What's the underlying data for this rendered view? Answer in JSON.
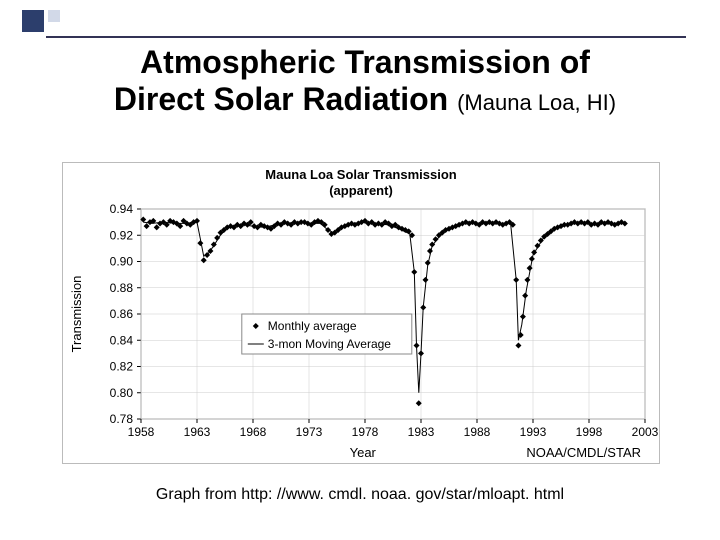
{
  "slide": {
    "title_line1": "Atmospheric Transmission of",
    "title_line2": "Direct Solar Radiation",
    "title_suffix": "(Mauna Loa, HI)",
    "caption_prefix": "Graph from  ",
    "caption_url": "http: //www. cmdl. noaa. gov/star/mloapt. html"
  },
  "chart": {
    "type": "line+scatter",
    "title_line1": "Mauna Loa Solar Transmission",
    "title_line2": "(apparent)",
    "xlabel": "Year",
    "ylabel": "Transmission",
    "attribution": "NOAA/CMDL/STAR",
    "xlim": [
      1958,
      2003
    ],
    "ylim": [
      0.78,
      0.94
    ],
    "xtick_step": 5,
    "ytick_step": 0.02,
    "xticks": [
      1958,
      1963,
      1968,
      1973,
      1978,
      1983,
      1988,
      1993,
      1998,
      2003
    ],
    "yticks": [
      0.78,
      0.8,
      0.82,
      0.84,
      0.86,
      0.88,
      0.9,
      0.92,
      0.94
    ],
    "background_color": "#ffffff",
    "grid_color": "#cccccc",
    "border_color": "#888888",
    "line_color": "#000000",
    "marker_color": "#000000",
    "marker_style": "diamond",
    "marker_size": 3,
    "line_width": 1,
    "tick_fontsize": 12,
    "label_fontsize": 13,
    "title_fontsize": 13,
    "legend": {
      "items": [
        {
          "label": "Monthly average",
          "type": "marker"
        },
        {
          "label": "3-mon Moving Average",
          "type": "line"
        }
      ],
      "fontsize": 12,
      "box_color": "#888888"
    },
    "series_monthly": [
      [
        1958.2,
        0.932
      ],
      [
        1958.5,
        0.927
      ],
      [
        1958.8,
        0.93
      ],
      [
        1959.1,
        0.931
      ],
      [
        1959.4,
        0.926
      ],
      [
        1959.7,
        0.929
      ],
      [
        1960.0,
        0.93
      ],
      [
        1960.3,
        0.928
      ],
      [
        1960.6,
        0.931
      ],
      [
        1960.9,
        0.93
      ],
      [
        1961.2,
        0.929
      ],
      [
        1961.5,
        0.927
      ],
      [
        1961.8,
        0.931
      ],
      [
        1962.1,
        0.929
      ],
      [
        1962.4,
        0.928
      ],
      [
        1962.7,
        0.93
      ],
      [
        1963.0,
        0.931
      ],
      [
        1963.3,
        0.914
      ],
      [
        1963.6,
        0.901
      ],
      [
        1963.9,
        0.905
      ],
      [
        1964.2,
        0.908
      ],
      [
        1964.5,
        0.913
      ],
      [
        1964.8,
        0.918
      ],
      [
        1965.1,
        0.922
      ],
      [
        1965.4,
        0.924
      ],
      [
        1965.7,
        0.926
      ],
      [
        1966.0,
        0.927
      ],
      [
        1966.3,
        0.926
      ],
      [
        1966.6,
        0.928
      ],
      [
        1966.9,
        0.927
      ],
      [
        1967.2,
        0.929
      ],
      [
        1967.5,
        0.928
      ],
      [
        1967.8,
        0.93
      ],
      [
        1968.1,
        0.927
      ],
      [
        1968.4,
        0.926
      ],
      [
        1968.7,
        0.928
      ],
      [
        1969.0,
        0.927
      ],
      [
        1969.3,
        0.926
      ],
      [
        1969.6,
        0.925
      ],
      [
        1969.9,
        0.927
      ],
      [
        1970.2,
        0.929
      ],
      [
        1970.5,
        0.928
      ],
      [
        1970.8,
        0.93
      ],
      [
        1971.1,
        0.929
      ],
      [
        1971.4,
        0.928
      ],
      [
        1971.7,
        0.93
      ],
      [
        1972.0,
        0.929
      ],
      [
        1972.3,
        0.93
      ],
      [
        1972.6,
        0.93
      ],
      [
        1972.9,
        0.929
      ],
      [
        1973.2,
        0.928
      ],
      [
        1973.5,
        0.93
      ],
      [
        1973.8,
        0.931
      ],
      [
        1974.1,
        0.93
      ],
      [
        1974.4,
        0.928
      ],
      [
        1974.7,
        0.924
      ],
      [
        1975.0,
        0.921
      ],
      [
        1975.3,
        0.922
      ],
      [
        1975.6,
        0.924
      ],
      [
        1975.9,
        0.926
      ],
      [
        1976.2,
        0.927
      ],
      [
        1976.5,
        0.928
      ],
      [
        1976.8,
        0.929
      ],
      [
        1977.1,
        0.928
      ],
      [
        1977.4,
        0.929
      ],
      [
        1977.7,
        0.93
      ],
      [
        1978.0,
        0.931
      ],
      [
        1978.3,
        0.929
      ],
      [
        1978.6,
        0.93
      ],
      [
        1978.9,
        0.928
      ],
      [
        1979.2,
        0.929
      ],
      [
        1979.5,
        0.928
      ],
      [
        1979.8,
        0.93
      ],
      [
        1980.1,
        0.929
      ],
      [
        1980.4,
        0.927
      ],
      [
        1980.7,
        0.928
      ],
      [
        1981.0,
        0.926
      ],
      [
        1981.3,
        0.925
      ],
      [
        1981.6,
        0.924
      ],
      [
        1981.9,
        0.923
      ],
      [
        1982.2,
        0.92
      ],
      [
        1982.4,
        0.892
      ],
      [
        1982.6,
        0.836
      ],
      [
        1982.8,
        0.792
      ],
      [
        1983.0,
        0.83
      ],
      [
        1983.2,
        0.865
      ],
      [
        1983.4,
        0.886
      ],
      [
        1983.6,
        0.899
      ],
      [
        1983.8,
        0.908
      ],
      [
        1984.0,
        0.913
      ],
      [
        1984.3,
        0.917
      ],
      [
        1984.6,
        0.92
      ],
      [
        1984.9,
        0.922
      ],
      [
        1985.2,
        0.924
      ],
      [
        1985.5,
        0.925
      ],
      [
        1985.8,
        0.926
      ],
      [
        1986.1,
        0.927
      ],
      [
        1986.4,
        0.928
      ],
      [
        1986.7,
        0.929
      ],
      [
        1987.0,
        0.93
      ],
      [
        1987.3,
        0.929
      ],
      [
        1987.6,
        0.93
      ],
      [
        1987.9,
        0.929
      ],
      [
        1988.2,
        0.928
      ],
      [
        1988.5,
        0.93
      ],
      [
        1988.8,
        0.929
      ],
      [
        1989.1,
        0.93
      ],
      [
        1989.4,
        0.929
      ],
      [
        1989.7,
        0.93
      ],
      [
        1990.0,
        0.929
      ],
      [
        1990.3,
        0.928
      ],
      [
        1990.6,
        0.929
      ],
      [
        1990.9,
        0.93
      ],
      [
        1991.2,
        0.928
      ],
      [
        1991.5,
        0.886
      ],
      [
        1991.7,
        0.836
      ],
      [
        1991.9,
        0.844
      ],
      [
        1992.1,
        0.858
      ],
      [
        1992.3,
        0.874
      ],
      [
        1992.5,
        0.886
      ],
      [
        1992.7,
        0.895
      ],
      [
        1992.9,
        0.902
      ],
      [
        1993.1,
        0.907
      ],
      [
        1993.4,
        0.912
      ],
      [
        1993.7,
        0.916
      ],
      [
        1994.0,
        0.919
      ],
      [
        1994.3,
        0.921
      ],
      [
        1994.6,
        0.923
      ],
      [
        1994.9,
        0.925
      ],
      [
        1995.2,
        0.926
      ],
      [
        1995.5,
        0.927
      ],
      [
        1995.8,
        0.928
      ],
      [
        1996.1,
        0.928
      ],
      [
        1996.4,
        0.929
      ],
      [
        1996.7,
        0.93
      ],
      [
        1997.0,
        0.929
      ],
      [
        1997.3,
        0.93
      ],
      [
        1997.6,
        0.929
      ],
      [
        1997.9,
        0.93
      ],
      [
        1998.2,
        0.928
      ],
      [
        1998.5,
        0.929
      ],
      [
        1998.8,
        0.928
      ],
      [
        1999.1,
        0.93
      ],
      [
        1999.4,
        0.929
      ],
      [
        1999.7,
        0.93
      ],
      [
        2000.0,
        0.929
      ],
      [
        2000.3,
        0.928
      ],
      [
        2000.6,
        0.929
      ],
      [
        2000.9,
        0.93
      ],
      [
        2001.2,
        0.929
      ]
    ],
    "series_moving": [
      [
        1958.2,
        0.93
      ],
      [
        1959.0,
        0.929
      ],
      [
        1960.0,
        0.93
      ],
      [
        1961.0,
        0.929
      ],
      [
        1962.0,
        0.929
      ],
      [
        1963.0,
        0.93
      ],
      [
        1963.3,
        0.917
      ],
      [
        1963.6,
        0.904
      ],
      [
        1964.0,
        0.906
      ],
      [
        1964.5,
        0.912
      ],
      [
        1965.0,
        0.919
      ],
      [
        1965.5,
        0.924
      ],
      [
        1966.0,
        0.927
      ],
      [
        1967.0,
        0.928
      ],
      [
        1968.0,
        0.927
      ],
      [
        1969.0,
        0.926
      ],
      [
        1970.0,
        0.928
      ],
      [
        1971.0,
        0.929
      ],
      [
        1972.0,
        0.93
      ],
      [
        1973.0,
        0.929
      ],
      [
        1974.0,
        0.929
      ],
      [
        1974.7,
        0.924
      ],
      [
        1975.2,
        0.922
      ],
      [
        1976.0,
        0.927
      ],
      [
        1977.0,
        0.929
      ],
      [
        1978.0,
        0.93
      ],
      [
        1979.0,
        0.929
      ],
      [
        1980.0,
        0.928
      ],
      [
        1981.0,
        0.925
      ],
      [
        1982.0,
        0.921
      ],
      [
        1982.4,
        0.892
      ],
      [
        1982.6,
        0.836
      ],
      [
        1982.8,
        0.8
      ],
      [
        1983.0,
        0.83
      ],
      [
        1983.2,
        0.865
      ],
      [
        1983.6,
        0.897
      ],
      [
        1984.0,
        0.912
      ],
      [
        1985.0,
        0.923
      ],
      [
        1986.0,
        0.927
      ],
      [
        1987.0,
        0.929
      ],
      [
        1988.0,
        0.929
      ],
      [
        1989.0,
        0.929
      ],
      [
        1990.0,
        0.929
      ],
      [
        1991.0,
        0.929
      ],
      [
        1991.5,
        0.886
      ],
      [
        1991.7,
        0.84
      ],
      [
        1992.0,
        0.852
      ],
      [
        1992.4,
        0.878
      ],
      [
        1993.0,
        0.905
      ],
      [
        1994.0,
        0.919
      ],
      [
        1995.0,
        0.925
      ],
      [
        1996.0,
        0.928
      ],
      [
        1997.0,
        0.929
      ],
      [
        1998.0,
        0.929
      ],
      [
        1999.0,
        0.929
      ],
      [
        2000.0,
        0.929
      ],
      [
        2001.2,
        0.929
      ]
    ]
  }
}
